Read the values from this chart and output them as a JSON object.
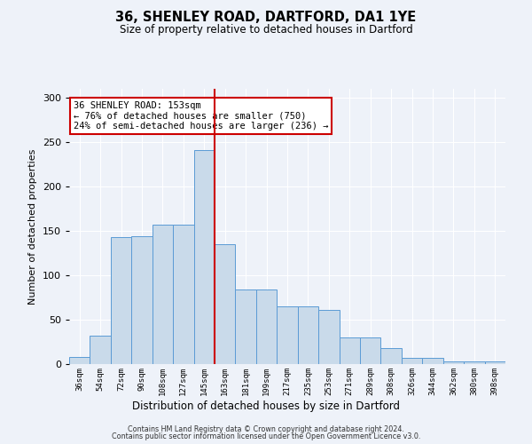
{
  "title": "36, SHENLEY ROAD, DARTFORD, DA1 1YE",
  "subtitle": "Size of property relative to detached houses in Dartford",
  "xlabel": "Distribution of detached houses by size in Dartford",
  "ylabel": "Number of detached properties",
  "categories": [
    "36sqm",
    "54sqm",
    "72sqm",
    "90sqm",
    "108sqm",
    "127sqm",
    "145sqm",
    "163sqm",
    "181sqm",
    "199sqm",
    "217sqm",
    "235sqm",
    "253sqm",
    "271sqm",
    "289sqm",
    "308sqm",
    "326sqm",
    "344sqm",
    "362sqm",
    "380sqm",
    "398sqm"
  ],
  "values": [
    8,
    32,
    143,
    144,
    157,
    157,
    241,
    135,
    84,
    84,
    65,
    65,
    61,
    30,
    30,
    18,
    7,
    7,
    3,
    3,
    3
  ],
  "bar_color": "#c9daea",
  "bar_edge_color": "#5b9bd5",
  "vline_color": "#cc0000",
  "annotation_text": "36 SHENLEY ROAD: 153sqm\n← 76% of detached houses are smaller (750)\n24% of semi-detached houses are larger (236) →",
  "annotation_box_color": "#ffffff",
  "annotation_box_edge": "#cc0000",
  "background_color": "#eef2f9",
  "grid_color": "#ffffff",
  "ylim": [
    0,
    310
  ],
  "yticks": [
    0,
    50,
    100,
    150,
    200,
    250,
    300
  ],
  "footer_line1": "Contains HM Land Registry data © Crown copyright and database right 2024.",
  "footer_line2": "Contains public sector information licensed under the Open Government Licence v3.0."
}
